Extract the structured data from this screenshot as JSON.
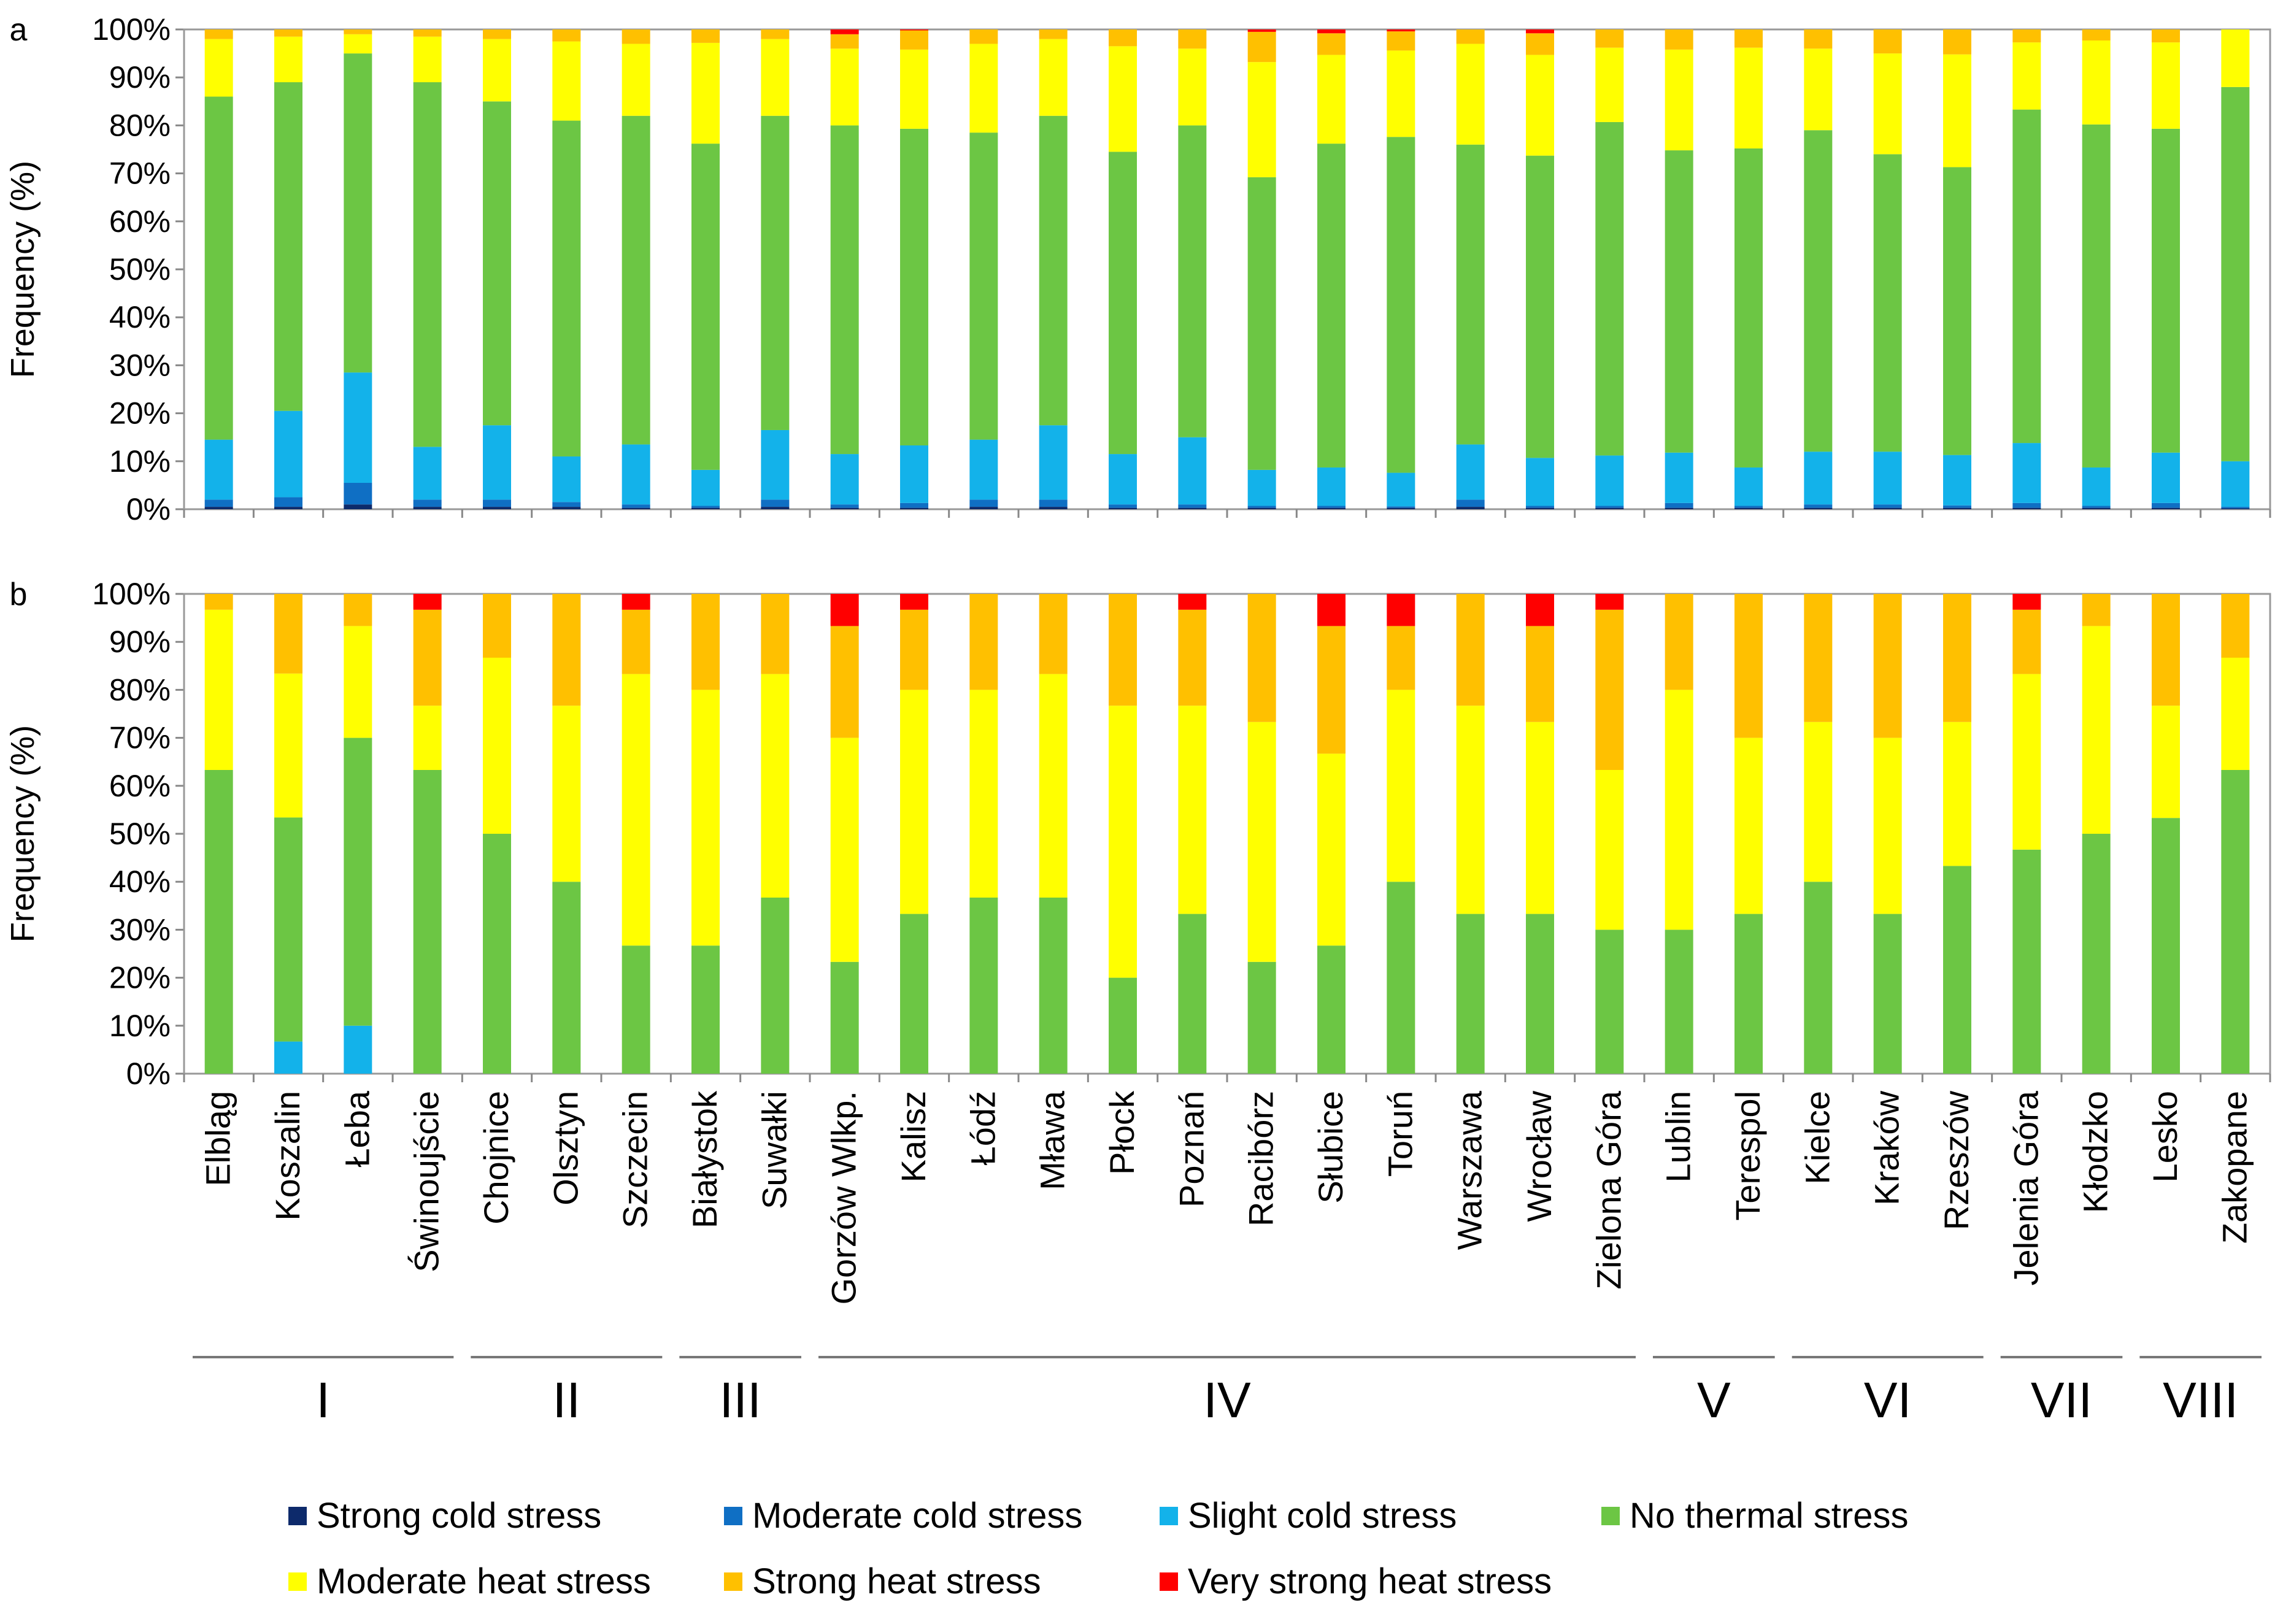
{
  "chart_data": [
    {
      "type": "bar",
      "stacked": true,
      "panel_label": "a",
      "ylabel": "Frequency (%)",
      "ylim": [
        0,
        100
      ],
      "yticks": [
        "0%",
        "10%",
        "20%",
        "30%",
        "40%",
        "50%",
        "60%",
        "70%",
        "80%",
        "90%",
        "100%"
      ],
      "categories": [
        "Elbląg",
        "Koszalin",
        "Łeba",
        "Świnoujście",
        "Chojnice",
        "Olsztyn",
        "Szczecin",
        "Białystok",
        "Suwałki",
        "Gorzów Wlkp.",
        "Kalisz",
        "Łódź",
        "Mława",
        "Płock",
        "Poznań",
        "Racibórz",
        "Słubice",
        "Toruń",
        "Warszawa",
        "Wrocław",
        "Zielona Góra",
        "Lublin",
        "Terespol",
        "Kielce",
        "Kraków",
        "Rzeszów",
        "Jelenia Góra",
        "Kłodzko",
        "Lesko",
        "Zakopane"
      ],
      "series": [
        {
          "name": "Strong cold stress",
          "values": [
            0.5,
            0.5,
            1,
            0.5,
            0.5,
            0.5,
            0.3,
            0.3,
            0.5,
            0.3,
            0.3,
            0.5,
            0.5,
            0.3,
            0.3,
            0.3,
            0.3,
            0.3,
            0.5,
            0.3,
            0.3,
            0.3,
            0.3,
            0.3,
            0.3,
            0.3,
            0.3,
            0.3,
            0.3,
            0.2
          ]
        },
        {
          "name": "Moderate cold stress",
          "values": [
            1.5,
            2,
            4.5,
            1.5,
            1.5,
            1,
            0.7,
            0.4,
            1.5,
            0.7,
            1,
            1.5,
            1.5,
            0.7,
            0.7,
            0.4,
            0.4,
            0.3,
            1.5,
            0.4,
            0.4,
            1,
            0.4,
            0.7,
            0.7,
            0.5,
            1,
            0.4,
            1,
            0.3
          ]
        },
        {
          "name": "Slight cold stress",
          "values": [
            12.5,
            18,
            23,
            11,
            15.5,
            9.5,
            12.5,
            7.5,
            14.5,
            10.5,
            12,
            12.5,
            15.5,
            10.5,
            14,
            7.5,
            8,
            7,
            11.5,
            10,
            10.5,
            10.5,
            8,
            11,
            11,
            10.5,
            12.5,
            8,
            10.5,
            9.5
          ]
        },
        {
          "name": "No thermal stress",
          "values": [
            71.5,
            68.5,
            66.5,
            76,
            67.5,
            70,
            68.5,
            68,
            65.5,
            68.5,
            66,
            64,
            64.5,
            63,
            65,
            61,
            67.5,
            70,
            62.5,
            63,
            69.5,
            63,
            66.5,
            67,
            62,
            60,
            69.5,
            71.5,
            67.5,
            78
          ]
        },
        {
          "name": "Moderate heat stress",
          "values": [
            12,
            9.5,
            4,
            9.5,
            13,
            16.5,
            15,
            21,
            16,
            16,
            16.5,
            18.5,
            16,
            22,
            16,
            24,
            18.5,
            18,
            21,
            21,
            15.5,
            21,
            21,
            17,
            21,
            23.5,
            14,
            17.5,
            18,
            12
          ]
        },
        {
          "name": "Strong heat stress",
          "values": [
            2,
            1.5,
            1,
            1.5,
            2,
            2.5,
            3,
            2.8,
            2,
            3,
            4,
            3,
            2,
            3.5,
            4,
            6.3,
            4.5,
            4,
            3,
            4.5,
            3.8,
            4.2,
            3.8,
            4,
            5,
            5.2,
            2.7,
            2.3,
            2.7,
            0
          ]
        },
        {
          "name": "Very strong heat stress",
          "values": [
            0,
            0,
            0,
            0,
            0,
            0,
            0,
            0,
            0,
            1,
            0.2,
            0,
            0,
            0,
            0,
            0.5,
            0.8,
            0.4,
            0,
            0.8,
            0,
            0,
            0,
            0,
            0,
            0,
            0,
            0,
            0,
            0
          ]
        }
      ]
    },
    {
      "type": "bar",
      "stacked": true,
      "panel_label": "b",
      "ylabel": "Frequency (%)",
      "ylim": [
        0,
        100
      ],
      "yticks": [
        "0%",
        "10%",
        "20%",
        "30%",
        "40%",
        "50%",
        "60%",
        "70%",
        "80%",
        "90%",
        "100%"
      ],
      "categories": [
        "Elbląg",
        "Koszalin",
        "Łeba",
        "Świnoujście",
        "Chojnice",
        "Olsztyn",
        "Szczecin",
        "Białystok",
        "Suwałki",
        "Gorzów Wlkp.",
        "Kalisz",
        "Łódź",
        "Mława",
        "Płock",
        "Poznań",
        "Racibórz",
        "Słubice",
        "Toruń",
        "Warszawa",
        "Wrocław",
        "Zielona Góra",
        "Lublin",
        "Terespol",
        "Kielce",
        "Kraków",
        "Rzeszów",
        "Jelenia Góra",
        "Kłodzko",
        "Lesko",
        "Zakopane"
      ],
      "series": [
        {
          "name": "Strong cold stress",
          "values": [
            0,
            0,
            0,
            0,
            0,
            0,
            0,
            0,
            0,
            0,
            0,
            0,
            0,
            0,
            0,
            0,
            0,
            0,
            0,
            0,
            0,
            0,
            0,
            0,
            0,
            0,
            0,
            0,
            0,
            0
          ]
        },
        {
          "name": "Moderate cold stress",
          "values": [
            0,
            0,
            0,
            0,
            0,
            0,
            0,
            0,
            0,
            0,
            0,
            0,
            0,
            0,
            0,
            0,
            0,
            0,
            0,
            0,
            0,
            0,
            0,
            0,
            0,
            0,
            0,
            0,
            0,
            0
          ]
        },
        {
          "name": "Slight cold stress",
          "values": [
            0,
            6.7,
            10,
            0,
            0,
            0,
            0,
            0,
            0,
            0,
            0,
            0,
            0,
            0,
            0,
            0,
            0,
            0,
            0,
            0,
            0,
            0,
            0,
            0,
            0,
            0,
            0,
            0,
            0,
            0
          ]
        },
        {
          "name": "No thermal stress",
          "values": [
            63.3,
            46.7,
            60,
            63.3,
            50,
            40,
            26.7,
            26.7,
            36.7,
            23.3,
            33.3,
            36.7,
            36.7,
            20,
            33.3,
            23.3,
            26.7,
            40,
            33.3,
            33.3,
            30,
            30,
            33.3,
            40,
            33.3,
            43.3,
            46.7,
            50,
            53.3,
            63.3
          ]
        },
        {
          "name": "Moderate heat stress",
          "values": [
            33.4,
            30,
            23.3,
            13.4,
            36.7,
            36.7,
            56.6,
            53.3,
            46.6,
            46.7,
            46.7,
            43.3,
            46.6,
            56.7,
            43.4,
            50,
            40,
            40,
            43.4,
            40,
            33.3,
            50,
            36.7,
            33.3,
            36.7,
            30,
            36.6,
            43.3,
            23.4,
            23.4
          ]
        },
        {
          "name": "Strong heat stress",
          "values": [
            3.3,
            16.6,
            6.7,
            20,
            13.3,
            23.3,
            13.4,
            20,
            16.7,
            23.3,
            16.7,
            20,
            16.7,
            23.3,
            20,
            26.7,
            26.6,
            13.3,
            23.3,
            20,
            33.4,
            20,
            30,
            26.7,
            30,
            26.7,
            13.4,
            6.7,
            23.3,
            13.3
          ]
        },
        {
          "name": "Very strong heat stress",
          "values": [
            0,
            0,
            0,
            3.3,
            0,
            0,
            3.3,
            0,
            0,
            6.7,
            3.3,
            0,
            0,
            0,
            3.3,
            0,
            6.7,
            6.7,
            0,
            6.7,
            3.3,
            0,
            0,
            0,
            0,
            0,
            3.3,
            0,
            0,
            0
          ]
        }
      ]
    }
  ],
  "groups": [
    {
      "label": "I",
      "start": 0,
      "end": 3
    },
    {
      "label": "II",
      "start": 4,
      "end": 6
    },
    {
      "label": "III",
      "start": 7,
      "end": 8
    },
    {
      "label": "IV",
      "start": 9,
      "end": 20
    },
    {
      "label": "V",
      "start": 21,
      "end": 22
    },
    {
      "label": "VI",
      "start": 23,
      "end": 25
    },
    {
      "label": "VII",
      "start": 26,
      "end": 27
    },
    {
      "label": "VIII",
      "start": 28,
      "end": 29
    }
  ],
  "legend": [
    {
      "name": "Strong cold stress",
      "color": "#0d2a6b"
    },
    {
      "name": "Moderate cold stress",
      "color": "#0f6fc4"
    },
    {
      "name": "Slight cold stress",
      "color": "#13b2ea"
    },
    {
      "name": "No thermal stress",
      "color": "#6cc644"
    },
    {
      "name": "Moderate heat stress",
      "color": "#ffff00"
    },
    {
      "name": "Strong heat stress",
      "color": "#ffc000"
    },
    {
      "name": "Very strong heat stress",
      "color": "#ff0000"
    }
  ]
}
